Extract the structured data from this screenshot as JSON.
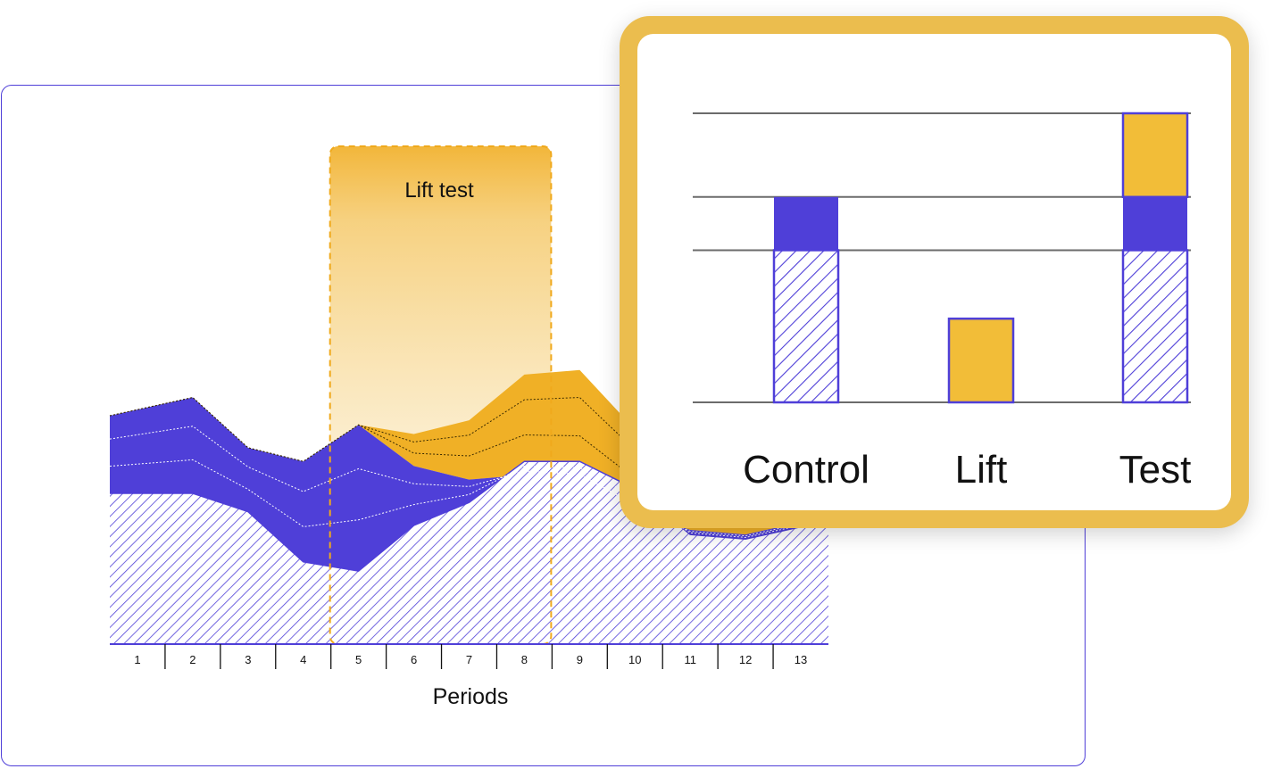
{
  "colors": {
    "blue": "#4f3fd8",
    "gold": "#f0b026",
    "gold_light": "#f2bd38",
    "frame_gold": "#ebbd4e",
    "grid": "#6b6b6b"
  },
  "chart_data": [
    {
      "type": "area",
      "xlabel": "Periods",
      "ylabel": "",
      "categories": [
        "1",
        "2",
        "3",
        "4",
        "5",
        "6",
        "7",
        "8",
        "9",
        "10",
        "11",
        "12",
        "13"
      ],
      "highlight": {
        "label": "Lift test",
        "from_period": 5,
        "to_period": 8
      },
      "ylim": [
        0,
        100
      ],
      "series": [
        {
          "name": "",
          "style": "hatched-blue",
          "values": [
            33,
            33,
            29,
            18,
            16,
            26,
            31,
            40,
            40,
            34,
            24,
            23,
            27
          ]
        },
        {
          "name": "",
          "style": "solid-blue",
          "values": [
            50,
            54,
            43,
            40,
            48,
            39,
            36,
            37,
            36,
            29,
            25,
            24,
            28
          ]
        },
        {
          "name": "",
          "style": "solid-gold",
          "values": [
            50,
            54,
            43,
            40,
            48,
            46,
            49,
            59,
            60,
            47,
            38,
            36,
            40
          ]
        }
      ]
    },
    {
      "type": "bar",
      "categories": [
        "Control",
        "Lift",
        "Test"
      ],
      "series": [
        {
          "name": "",
          "style": "hatched-blue",
          "values": [
            2,
            0,
            2
          ]
        },
        {
          "name": "",
          "style": "solid-blue",
          "values": [
            0.7,
            0,
            0.7
          ]
        },
        {
          "name": "",
          "style": "gold",
          "values": [
            0,
            1.1,
            1.1
          ]
        }
      ],
      "gridlines": [
        0,
        2,
        2.7,
        3.8
      ],
      "ylim": [
        0,
        3.8
      ]
    }
  ]
}
